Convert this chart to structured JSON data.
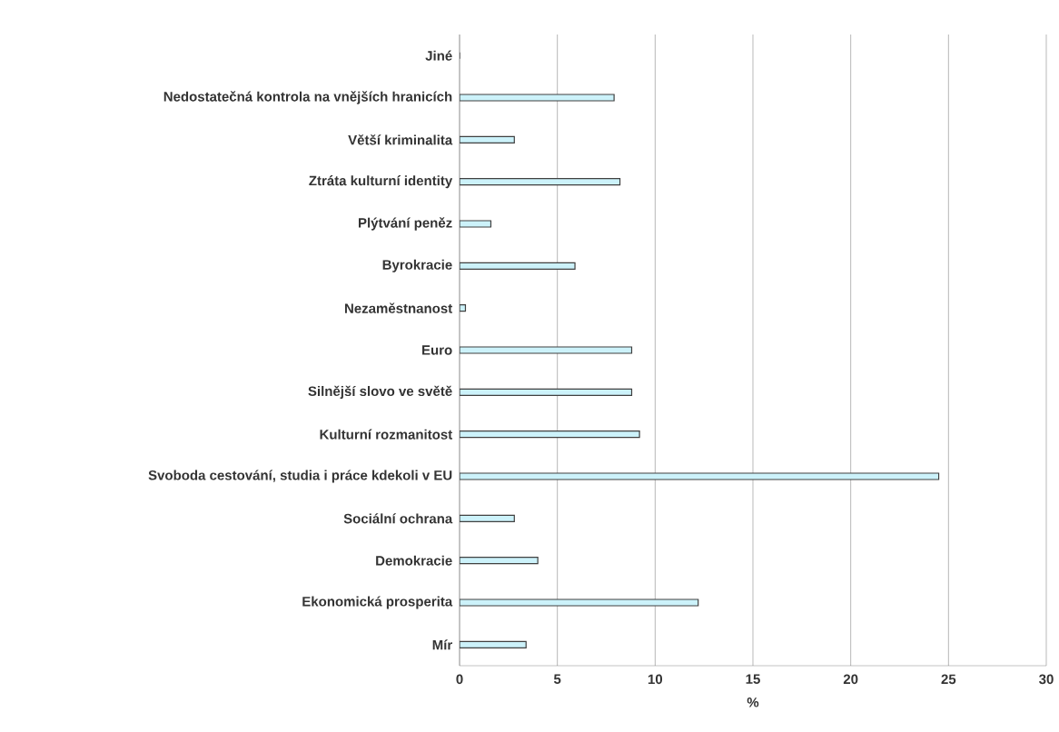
{
  "chart_data": {
    "type": "bar",
    "orientation": "horizontal",
    "xlabel": "%",
    "categories": [
      "Jiné",
      "Nedostatečná kontrola na vnějších hranicích",
      "Větší kriminalita",
      "Ztráta kulturní identity",
      "Plýtvání peněz",
      "Byrokracie",
      "Nezaměstnanost",
      "Euro",
      "Silnější slovo ve světě",
      "Kulturní rozmanitost",
      "Svoboda cestování, studia i práce kdekoli v EU",
      "Sociální ochrana",
      "Demokracie",
      "Ekonomická prosperita",
      "Mír"
    ],
    "values": [
      0,
      7.9,
      2.8,
      8.2,
      1.6,
      5.9,
      0.3,
      8.8,
      8.8,
      9.2,
      24.5,
      2.8,
      4.0,
      12.2,
      3.4
    ],
    "color": "#ccf2fa",
    "xlim": [
      0,
      30
    ],
    "xticks": [
      0,
      5,
      10,
      15,
      20,
      25,
      30
    ],
    "grid": "x"
  }
}
